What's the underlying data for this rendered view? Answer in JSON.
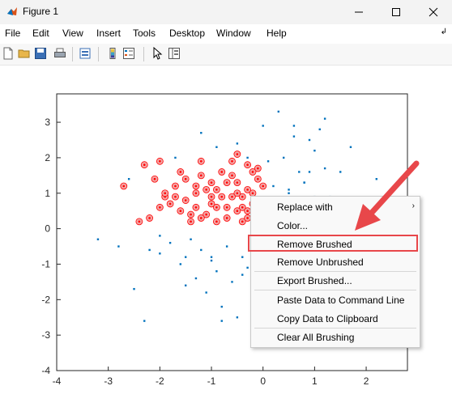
{
  "window": {
    "title": "Figure 1"
  },
  "menu": {
    "items": [
      "File",
      "Edit",
      "View",
      "Insert",
      "Tools",
      "Desktop",
      "Window",
      "Help"
    ],
    "collapse_icon": "double-chevron-icon"
  },
  "toolbar": {
    "icons": [
      "new-figure-icon",
      "open-file-icon",
      "save-icon",
      "print-icon",
      "link-plot-icon",
      "colorbar-icon",
      "legend-icon",
      "edit-plot-icon",
      "property-inspector-icon"
    ]
  },
  "colors": {
    "unbrushed": "#0072bd",
    "brushed": "#ff0000",
    "annotation": "#e8474a"
  },
  "chart_data": {
    "type": "scatter",
    "xlim": [
      -4,
      2.8
    ],
    "ylim": [
      -4,
      3.8
    ],
    "xticks": [
      "-4",
      "-3",
      "-2",
      "-1",
      "0",
      "1",
      "2"
    ],
    "yticks": [
      "3",
      "2",
      "1",
      "0",
      "-1",
      "-2",
      "-3",
      "-4"
    ],
    "grid": false,
    "series": [
      {
        "values_x": [
          -2.2,
          -2.0,
          -1.9,
          -1.7,
          -1.6,
          -1.5,
          -1.3,
          -1.2,
          -1.1,
          -1.0,
          -0.9,
          -0.8,
          -0.7,
          -0.6,
          -0.5,
          -0.4,
          -0.3,
          -0.2,
          -0.1,
          0.0,
          -2.7,
          -2.3,
          -2.1,
          -1.8,
          -1.4,
          -1.2,
          -0.9,
          -0.7,
          -0.5,
          -0.3,
          -0.1,
          0.1,
          -1.6,
          -1.3,
          -1.0,
          -0.8,
          -0.6,
          -0.4,
          -0.2,
          0.0,
          -2.4,
          -1.9,
          -1.5,
          -1.1,
          -0.7,
          -0.5,
          -0.3,
          -1.4,
          -1.0,
          -0.6,
          -0.4,
          -0.2,
          -1.7,
          -1.2,
          -0.9,
          -0.5,
          -0.3,
          -0.1,
          -2.0,
          -1.3
        ],
        "values_y": [
          0.3,
          0.6,
          0.9,
          1.2,
          0.5,
          0.8,
          1.0,
          1.5,
          0.4,
          0.7,
          1.1,
          1.6,
          0.3,
          0.9,
          1.3,
          0.6,
          1.8,
          1.0,
          1.4,
          0.8,
          1.2,
          1.8,
          1.4,
          0.7,
          0.2,
          1.9,
          0.2,
          1.3,
          0.5,
          1.1,
          1.7,
          0.6,
          1.6,
          0.6,
          1.3,
          0.9,
          1.9,
          0.2,
          0.7,
          1.2,
          0.2,
          1.0,
          1.4,
          1.1,
          0.6,
          2.1,
          0.3,
          0.4,
          0.9,
          1.5,
          0.9,
          1.6,
          0.9,
          0.3,
          0.6,
          1.0,
          0.5,
          0.3,
          1.9,
          1.2
        ]
      },
      {
        "values_x": [
          -3.2,
          -2.8,
          -2.6,
          -2.5,
          -2.2,
          -2.0,
          -1.8,
          -1.6,
          -1.5,
          -1.4,
          -1.3,
          -1.2,
          -1.1,
          -1.0,
          -0.9,
          -0.8,
          -0.7,
          -0.6,
          -0.5,
          -0.4,
          -0.3,
          -0.2,
          -0.1,
          0.1,
          0.2,
          0.3,
          0.4,
          0.5,
          0.6,
          0.7,
          0.8,
          0.9,
          1.0,
          1.1,
          1.2,
          1.3,
          1.5,
          1.7,
          1.8,
          2.0,
          2.2,
          0.3,
          0.6,
          0.9,
          1.2,
          1.0,
          -0.9,
          -0.5,
          -1.7,
          -1.2,
          -0.3,
          0.0,
          0.5,
          -2.3,
          -0.8,
          -1.5,
          -1.0,
          -0.4,
          -2.0,
          0.8
        ],
        "values_y": [
          -0.3,
          -0.5,
          1.4,
          -1.7,
          -0.6,
          -0.2,
          -0.4,
          -1.0,
          -0.8,
          -0.3,
          -1.4,
          -0.6,
          -1.8,
          -0.9,
          -1.2,
          -2.2,
          -0.5,
          -1.5,
          -2.5,
          -0.8,
          -1.1,
          -2.9,
          -1.9,
          1.9,
          1.2,
          0.8,
          2.0,
          1.0,
          2.9,
          1.6,
          1.3,
          2.5,
          0.9,
          2.8,
          1.7,
          0.9,
          1.6,
          2.3,
          0.7,
          0.8,
          1.4,
          3.3,
          2.6,
          1.6,
          3.1,
          2.2,
          2.3,
          2.4,
          2.0,
          2.7,
          2.0,
          2.9,
          1.1,
          -2.6,
          -2.6,
          -1.6,
          -0.8,
          -1.3,
          -0.7,
          1.3
        ]
      }
    ]
  },
  "context_menu": {
    "items": [
      {
        "label": "Replace with",
        "submenu": true
      },
      {
        "label": "Color...",
        "submenu": false
      },
      {
        "label": "Remove Brushed",
        "submenu": false
      },
      {
        "label": "Remove Unbrushed",
        "submenu": false
      },
      {
        "label": "Export Brushed...",
        "submenu": false
      },
      {
        "label": "Paste Data to Command Line",
        "submenu": false
      },
      {
        "label": "Copy Data to Clipboard",
        "submenu": false
      },
      {
        "label": "Clear All Brushing",
        "submenu": false
      }
    ],
    "highlighted": "Remove Brushed"
  }
}
